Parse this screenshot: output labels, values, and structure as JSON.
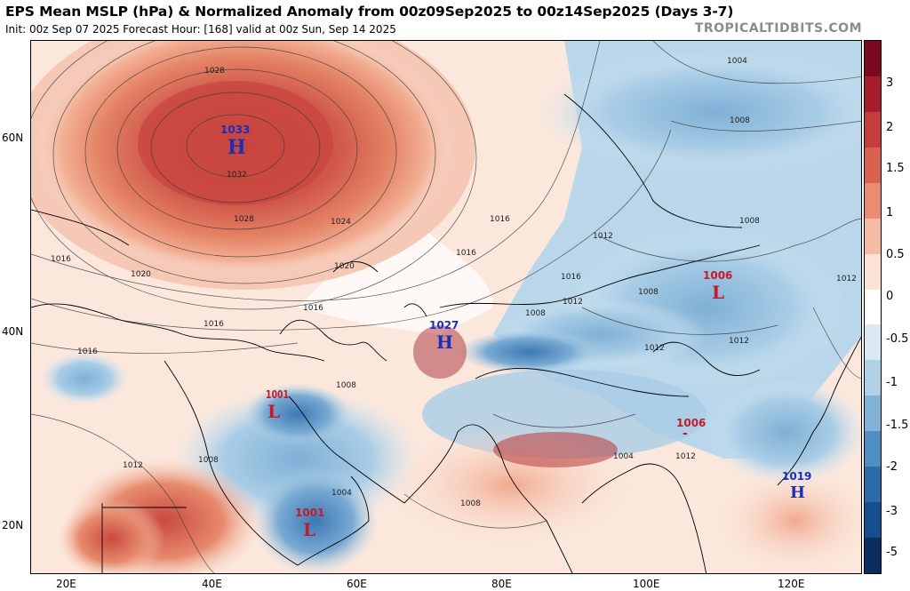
{
  "header": {
    "title": "EPS Mean MSLP (hPa) & Normalized Anomaly from 00z09Sep2025 to 00z14Sep2025 (Days 3-7)",
    "subtitle": "Init: 00z Sep 07 2025   Forecast Hour: [168]   valid at 00z Sun, Sep 14 2025",
    "credit": "TROPICALTIDBITS.COM"
  },
  "axes": {
    "lat_labels": [
      "60N",
      "40N",
      "20N"
    ],
    "lon_labels": [
      "20E",
      "40E",
      "60E",
      "80E",
      "100E",
      "120E"
    ]
  },
  "colorbar": {
    "ticks": [
      "3",
      "2",
      "1.5",
      "1",
      "0.5",
      "0",
      "-0.5",
      "-1",
      "-1.5",
      "-2",
      "-3",
      "-5"
    ],
    "colors": [
      "#7a0a1e",
      "#a61d2b",
      "#c43c3c",
      "#d8614f",
      "#ea8c6f",
      "#f6bca3",
      "#fbe2d4",
      "#ffffff",
      "#d9e8f3",
      "#b1d1e7",
      "#80b3d7",
      "#4f8fc1",
      "#2b6ba8",
      "#154e8c",
      "#0a2f5e"
    ]
  },
  "pressure_centers": [
    {
      "type": "H",
      "value": "1033"
    },
    {
      "type": "H",
      "value": "1027"
    },
    {
      "type": "L",
      "value": "1006"
    },
    {
      "type": "L",
      "value": "1006"
    },
    {
      "type": "L",
      "value": "1001"
    },
    {
      "type": "L",
      "value": "1001"
    },
    {
      "type": "H",
      "value": "1019"
    }
  ],
  "isobar_labels": [
    "1028",
    "1032",
    "1028",
    "1024",
    "1020",
    "1016",
    "1020",
    "1016",
    "1016",
    "1016",
    "1016",
    "1012",
    "1008",
    "1004",
    "1008",
    "1008",
    "1016",
    "1012",
    "1008",
    "1012",
    "1012",
    "1008",
    "1004",
    "1008",
    "1008",
    "1012",
    "1016",
    "1012",
    "1012",
    "1004"
  ]
}
